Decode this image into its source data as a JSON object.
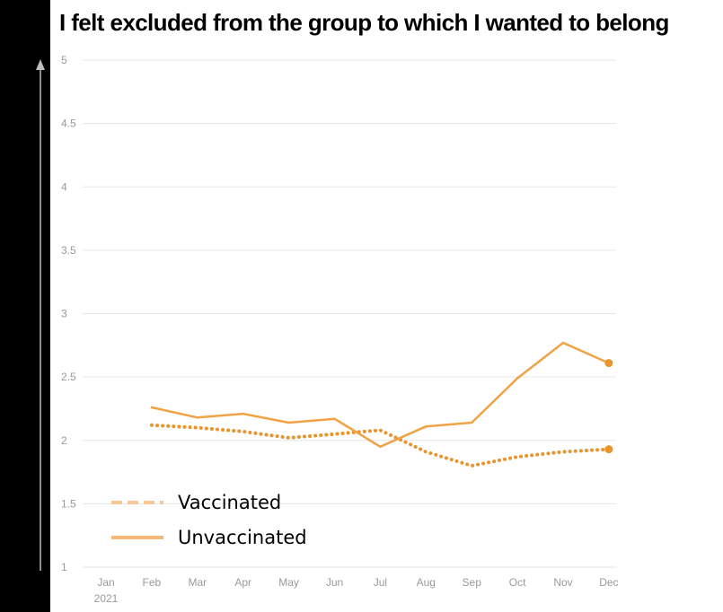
{
  "chart_data": {
    "type": "line",
    "title": "I felt excluded from the group to which I wanted to belong",
    "categories": [
      "Jan",
      "Feb",
      "Mar",
      "Apr",
      "May",
      "Jun",
      "Jul",
      "Aug",
      "Sep",
      "Oct",
      "Nov",
      "Dec"
    ],
    "x_sublabel": "2021",
    "y_ticks": [
      "1",
      "1.5",
      "2",
      "2.5",
      "3",
      "3.5",
      "4",
      "4.5",
      "5"
    ],
    "ylim": [
      1,
      5
    ],
    "grid": true,
    "legend_position": "bottom-left",
    "series": [
      {
        "name": "Vaccinated",
        "style": "dotted",
        "legend_style": "dashed",
        "color": "#e8952e",
        "legend_color": "#f7c695",
        "values": [
          null,
          2.12,
          2.1,
          2.07,
          2.02,
          2.05,
          2.08,
          1.91,
          1.8,
          1.87,
          1.91,
          1.93
        ]
      },
      {
        "name": "Unvaccinated",
        "style": "solid",
        "color": "#f0a346",
        "legend_color": "#f5b978",
        "values": [
          null,
          2.26,
          2.18,
          2.21,
          2.14,
          2.17,
          1.95,
          2.11,
          2.14,
          2.49,
          2.77,
          2.61
        ]
      }
    ]
  },
  "colors": {
    "grid": "#e6e6e6",
    "axis_band": "#000000",
    "end_dot": "#e8952e"
  }
}
